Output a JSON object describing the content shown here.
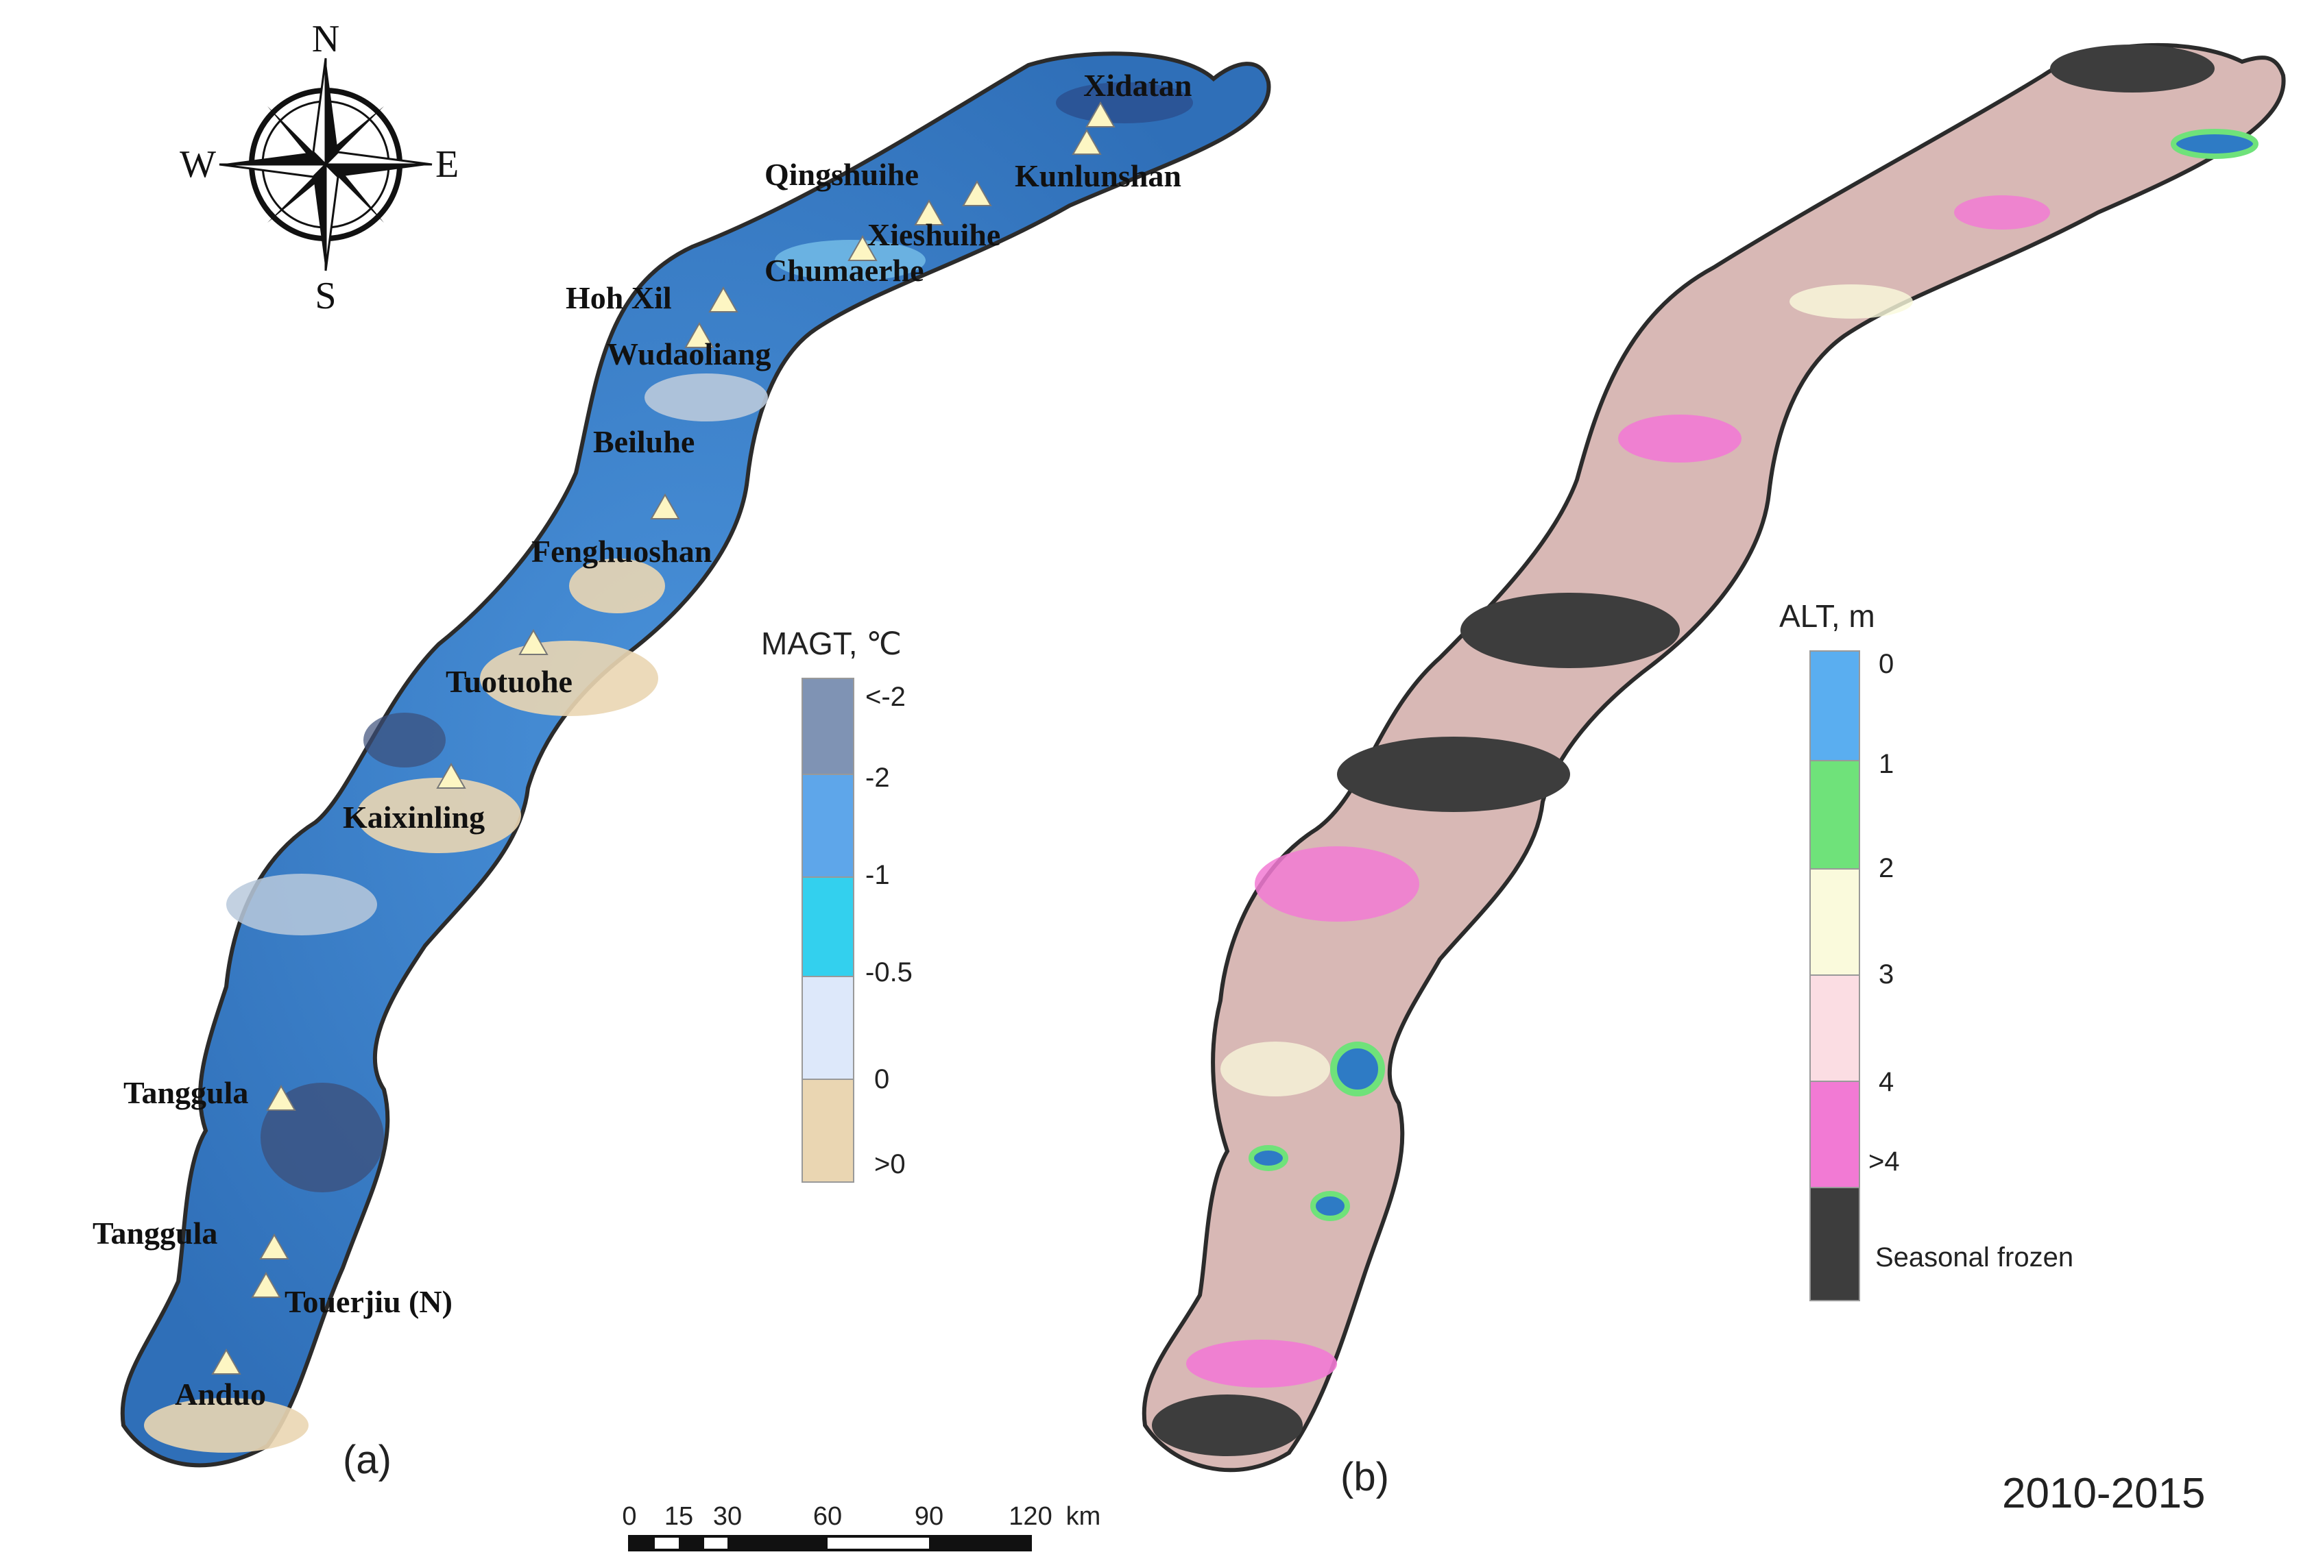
{
  "compass": {
    "north": "N",
    "south": "S",
    "east": "E",
    "west": "W"
  },
  "panel_a": {
    "label": "(a)",
    "legend": {
      "title": "MAGT, ℃",
      "classes": [
        {
          "label": "<-2",
          "color": "#7f93b4"
        },
        {
          "label": "-2",
          "color": "#5ea6ea"
        },
        {
          "label": "-1",
          "color": "#33d0ee"
        },
        {
          "label": "-0.5",
          "color": "#dde8fa"
        },
        {
          "label": "0",
          "color": "#ead6b2"
        },
        {
          "label": ">0",
          "color": ""
        }
      ]
    },
    "sites": [
      {
        "name": "Xidatan"
      },
      {
        "name": "Kunlunshan"
      },
      {
        "name": "Qingshuihe"
      },
      {
        "name": "Xieshuihe"
      },
      {
        "name": "Chumaerhe"
      },
      {
        "name": "Hoh Xil"
      },
      {
        "name": "Wudaoliang"
      },
      {
        "name": "Beiluhe"
      },
      {
        "name": "Fenghuoshan"
      },
      {
        "name": "Tuotuohe"
      },
      {
        "name": "Kaixinling"
      },
      {
        "name": "Tanggula"
      },
      {
        "name": "Tanggula"
      },
      {
        "name": "Touerjiu (N)"
      },
      {
        "name": "Anduo"
      }
    ]
  },
  "panel_b": {
    "label": "(b)",
    "legend": {
      "title": "ALT, m",
      "classes": [
        {
          "label": "0",
          "color": "#5aaef0"
        },
        {
          "label": "1",
          "color": "#6fe27a"
        },
        {
          "label": "2",
          "color": "#fafadc"
        },
        {
          "label": "3",
          "color": "#fbdde3"
        },
        {
          "label": "4",
          "color": "#f27ad4"
        },
        {
          "label": ">4",
          "color": "#3d3d3d"
        }
      ],
      "seasonal_label": "Seasonal frozen"
    }
  },
  "scale_bar": {
    "ticks": [
      "0",
      "15",
      "30",
      "60",
      "90",
      "120"
    ],
    "unit": "km"
  },
  "period": "2010-2015",
  "colors": {
    "corridor_a": "#3f86d0",
    "corridor_b": "#d8b8b5",
    "outline": "#2b2b2b",
    "site_marker": "#fdf6c3"
  }
}
